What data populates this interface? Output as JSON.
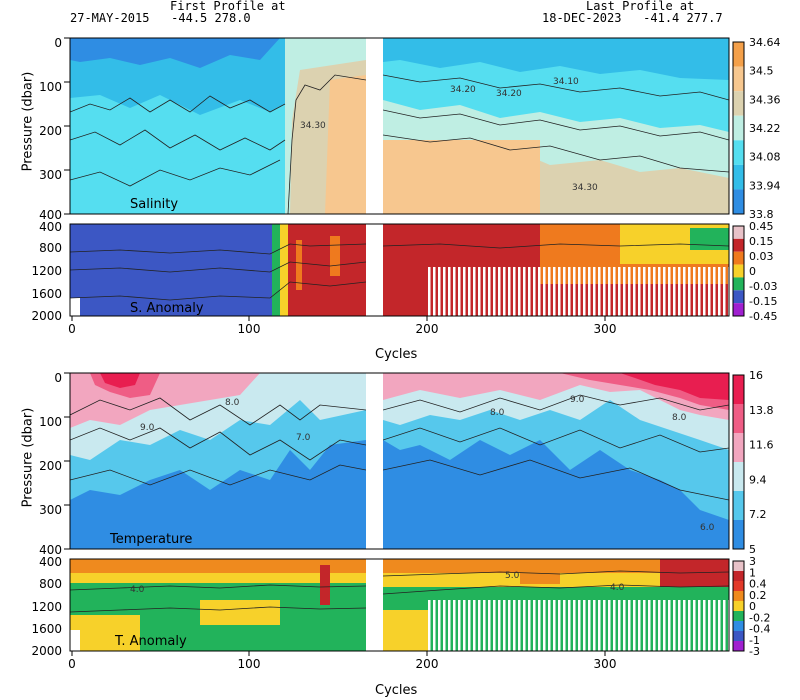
{
  "header": {
    "first_title": "First Profile at",
    "first_info": "27-MAY-2015   -44.5 278.0",
    "last_title": "Last Profile at",
    "last_info": "18-DEC-2023   -41.4 277.7"
  },
  "chart_data": [
    {
      "type": "heatmap",
      "panel_label": "Salinity",
      "ylabel": "Pressure (dbar)",
      "xlabel": "",
      "xlim": [
        0,
        365
      ],
      "ylim": [
        0,
        400
      ],
      "y_inverted": true,
      "yticks": [
        "0",
        "100",
        "200",
        "300",
        "400"
      ],
      "colorbar": [
        "34.64",
        "34.5",
        "34.36",
        "34.22",
        "34.08",
        "33.94",
        "33.8"
      ],
      "colors": [
        "#f4a04a",
        "#f7c78f",
        "#dcd2b0",
        "#bfeee3",
        "#55def0",
        "#33bde8",
        "#2f8de3"
      ],
      "contour_labels": [
        "34.30",
        "34.20",
        "34.20",
        "34.10",
        "34.30"
      ]
    },
    {
      "type": "heatmap",
      "panel_label": "S. Anomaly",
      "xlabel": "Cycles",
      "xlim": [
        0,
        365
      ],
      "ylim": [
        400,
        2000
      ],
      "y_inverted": true,
      "yticks": [
        "400",
        "800",
        "1200",
        "1600",
        "2000"
      ],
      "xticks": [
        "0",
        "100",
        "200",
        "300"
      ],
      "colorbar": [
        "0.45",
        "0.15",
        "0.03",
        "0",
        "-0.03",
        "-0.15",
        "-0.45"
      ],
      "colors": [
        "#e8c2c8",
        "#c3262a",
        "#ef7a1e",
        "#f7d12a",
        "#22b35b",
        "#3c57c4",
        "#a020d0"
      ]
    },
    {
      "type": "heatmap",
      "panel_label": "Temperature",
      "ylabel": "Pressure (dbar)",
      "xlim": [
        0,
        365
      ],
      "ylim": [
        0,
        400
      ],
      "y_inverted": true,
      "yticks": [
        "0",
        "100",
        "200",
        "300",
        "400"
      ],
      "colorbar": [
        "16",
        "13.8",
        "11.6",
        "9.4",
        "7.2",
        "5"
      ],
      "colors": [
        "#e81e50",
        "#ef5d85",
        "#f2a6bf",
        "#c9e9ef",
        "#56c8ec",
        "#2f8de3"
      ],
      "contour_labels": [
        "9.0",
        "8.0",
        "7.0",
        "8.0",
        "9.0",
        "8.0",
        "6.0"
      ]
    },
    {
      "type": "heatmap",
      "panel_label": "T. Anomaly",
      "xlabel": "Cycles",
      "xlim": [
        0,
        365
      ],
      "ylim": [
        400,
        2000
      ],
      "y_inverted": true,
      "yticks": [
        "400",
        "800",
        "1200",
        "1600",
        "2000"
      ],
      "xticks": [
        "0",
        "100",
        "200",
        "300"
      ],
      "colorbar": [
        "3",
        "1",
        "0.4",
        "0.2",
        "0",
        "-0.2",
        "-0.4",
        "-1",
        "-3"
      ],
      "colors": [
        "#e8c2c8",
        "#c3262a",
        "#e23a2a",
        "#ef8a1e",
        "#f7d12a",
        "#22b35b",
        "#2f8de3",
        "#3c57c4",
        "#a020d0"
      ],
      "contour_labels": [
        "4.0",
        "5.0",
        "4.0"
      ]
    }
  ]
}
